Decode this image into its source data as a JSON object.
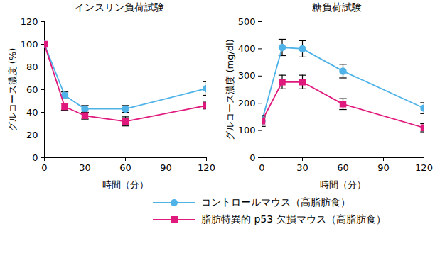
{
  "chart_data": [
    {
      "type": "line",
      "title": "インスリン負荷試験",
      "x_label": "時間（分）",
      "y_label": "グルコース濃度 (%)",
      "x": [
        0,
        15,
        30,
        60,
        120
      ],
      "xlim": [
        0,
        120
      ],
      "xticks": [
        0,
        30,
        60,
        90,
        120
      ],
      "ylim": [
        0,
        120
      ],
      "yticks": [
        0,
        20,
        40,
        60,
        80,
        100,
        120
      ],
      "legend": "bottom",
      "series": [
        {
          "name": "コントロールマウス（高脂肪食）",
          "color": "#4fb3e8",
          "marker": "circle",
          "values": [
            100,
            55,
            43,
            43,
            61
          ],
          "errors": [
            0,
            3,
            3,
            3,
            6
          ]
        },
        {
          "name": "脂肪特異的 p53 欠損マウス（高脂肪食）",
          "color": "#e0197d",
          "marker": "square",
          "values": [
            100,
            45,
            37,
            32,
            46
          ],
          "errors": [
            0,
            3,
            3,
            4,
            3
          ]
        }
      ]
    },
    {
      "type": "line",
      "title": "糖負荷試験",
      "x_label": "時間（分）",
      "y_label": "グルコース濃度 (mg/dl)",
      "x": [
        0,
        15,
        30,
        60,
        120
      ],
      "xlim": [
        0,
        120
      ],
      "xticks": [
        0,
        30,
        60,
        90,
        120
      ],
      "ylim": [
        0,
        500
      ],
      "yticks": [
        0,
        100,
        200,
        300,
        400,
        500
      ],
      "legend": "bottom",
      "series": [
        {
          "name": "コントロールマウス（高脂肪食）",
          "color": "#4fb3e8",
          "marker": "circle",
          "values": [
            135,
            405,
            400,
            318,
            182
          ],
          "errors": [
            15,
            30,
            30,
            25,
            20
          ]
        },
        {
          "name": "脂肪特異的 p53 欠損マウス（高脂肪食）",
          "color": "#e0197d",
          "marker": "square",
          "values": [
            135,
            278,
            278,
            197,
            110
          ],
          "errors": [
            20,
            25,
            25,
            20,
            15
          ]
        }
      ]
    }
  ]
}
